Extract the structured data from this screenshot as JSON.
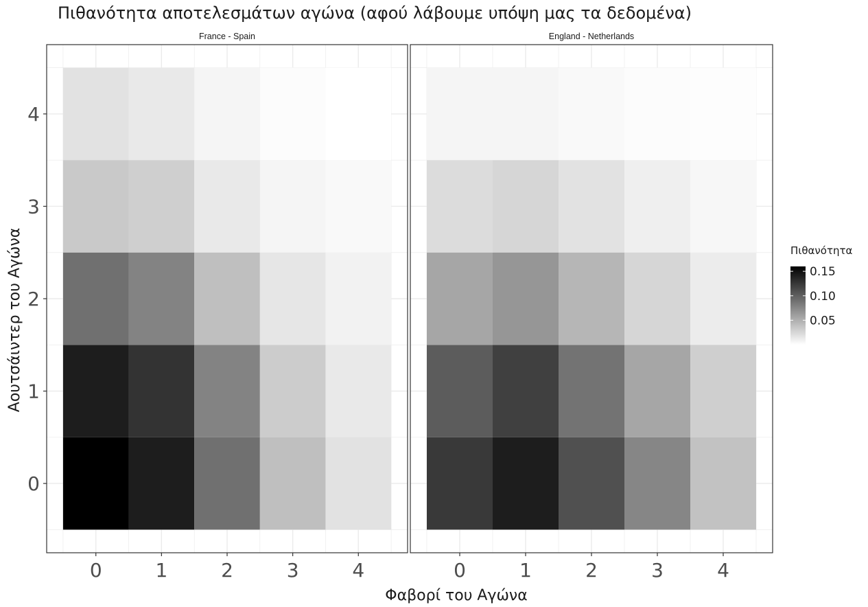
{
  "chart_data": {
    "type": "heatmap",
    "title": "Πιθανότητα αποτελεσμάτων αγώνα (αφού λάβουμε υπόψη μας τα δεδομένα)",
    "xlabel": "Φαβορί του Αγώνα",
    "ylabel": "Αουτσάιντερ του Αγώνα",
    "x": [
      0,
      1,
      2,
      3,
      4
    ],
    "y": [
      0,
      1,
      2,
      3,
      4
    ],
    "xlim": [
      -0.5,
      4.5
    ],
    "ylim": [
      -0.5,
      4.5
    ],
    "grid": true,
    "legend": {
      "title": "Πιθανότητα",
      "position": "right",
      "ticks": [
        0.05,
        0.1,
        0.15
      ],
      "tick_labels": [
        "0.05",
        "0.10",
        "0.15"
      ],
      "range": [
        0.0,
        0.16
      ],
      "color_low": "#ffffff",
      "color_high": "#000000"
    },
    "panels": [
      {
        "name": "France - Spain",
        "values": [
          [
            0.16,
            0.142,
            0.09,
            0.04,
            0.018
          ],
          [
            0.142,
            0.128,
            0.078,
            0.032,
            0.014
          ],
          [
            0.09,
            0.078,
            0.04,
            0.016,
            0.008
          ],
          [
            0.034,
            0.03,
            0.014,
            0.006,
            0.004
          ],
          [
            0.018,
            0.014,
            0.006,
            0.002,
            0.0
          ]
        ]
      },
      {
        "name": "England - Netherlands",
        "values": [
          [
            0.124,
            0.142,
            0.11,
            0.076,
            0.038
          ],
          [
            0.102,
            0.12,
            0.088,
            0.056,
            0.03
          ],
          [
            0.056,
            0.066,
            0.046,
            0.026,
            0.012
          ],
          [
            0.022,
            0.026,
            0.018,
            0.01,
            0.005
          ],
          [
            0.006,
            0.006,
            0.004,
            0.002,
            0.001
          ]
        ]
      }
    ]
  }
}
